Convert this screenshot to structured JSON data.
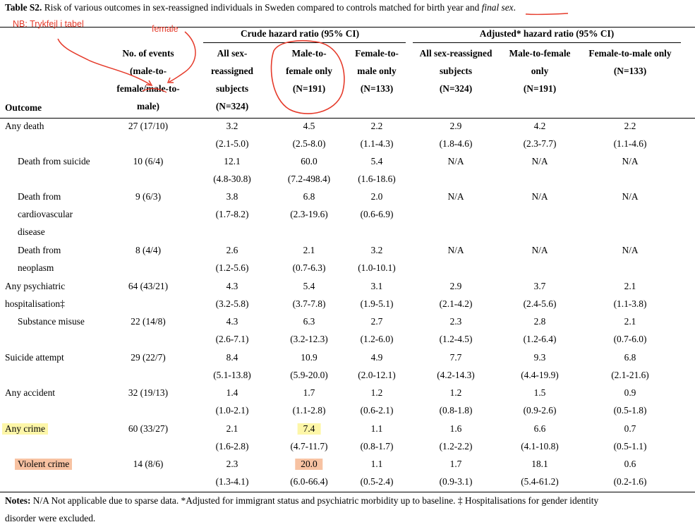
{
  "caption": {
    "label": "Table S2.",
    "text": " Risk of various outcomes in sex-reassigned individuals in Sweden compared to controls matched for birth year and ",
    "italic": "final sex",
    "end": "."
  },
  "annotations": {
    "nb_note": "NB: Trykfejl i tabel",
    "female_note": "female",
    "color": "#e53a2a"
  },
  "groups": {
    "crude": "Crude hazard ratio (95% CI)",
    "adjusted": "Adjusted* hazard ratio (95% CI)"
  },
  "headers": {
    "outcome": "Outcome",
    "events": [
      "No. of events",
      "(male-to-",
      "female/male-to-",
      "male)"
    ],
    "crude_all": [
      "All sex-",
      "reassigned",
      "subjects",
      "(N=324)"
    ],
    "crude_mtf": [
      "Male-to-",
      "female only",
      "(N=191)"
    ],
    "crude_ftm": [
      "Female-to-",
      "male only",
      "(N=133)"
    ],
    "adj_all": [
      "All sex-reassigned",
      "subjects",
      "(N=324)"
    ],
    "adj_mtf": [
      "Male-to-female",
      "only",
      "(N=191)"
    ],
    "adj_ftm": [
      "Female-to-male only",
      "(N=133)"
    ]
  },
  "rows": [
    {
      "outcome": [
        "Any death"
      ],
      "events": "27 (17/10)",
      "v": [
        "3.2",
        "4.5",
        "2.2",
        "2.9",
        "4.2",
        "2.2"
      ],
      "ci": [
        "(2.1-5.0)",
        "(2.5-8.0)",
        "(1.1-4.3)",
        "(1.8-4.6)",
        "(2.3-7.7)",
        "(1.1-4.6)"
      ]
    },
    {
      "outcome": [
        "Death from suicide"
      ],
      "events": "10 (6/4)",
      "v": [
        "12.1",
        "60.0",
        "5.4",
        "N/A",
        "N/A",
        "N/A"
      ],
      "ci": [
        "(4.8-30.8)",
        "(7.2-498.4)",
        "(1.6-18.6)",
        "",
        "",
        ""
      ]
    },
    {
      "outcome": [
        "Death from",
        "cardiovascular",
        "disease"
      ],
      "events": "9 (6/3)",
      "v": [
        "3.8",
        "6.8",
        "2.0",
        "N/A",
        "N/A",
        "N/A"
      ],
      "ci": [
        "(1.7-8.2)",
        "(2.3-19.6)",
        "(0.6-6.9)",
        "",
        "",
        ""
      ]
    },
    {
      "outcome": [
        "Death from",
        "neoplasm"
      ],
      "events": "8 (4/4)",
      "v": [
        "2.6",
        "2.1",
        "3.2",
        "N/A",
        "N/A",
        "N/A"
      ],
      "ci": [
        "(1.2-5.6)",
        "(0.7-6.3)",
        "(1.0-10.1)",
        "",
        "",
        ""
      ]
    },
    {
      "outcome": [
        "Any psychiatric",
        "hospitalisation‡"
      ],
      "events": "64 (43/21)",
      "v": [
        "4.3",
        "5.4",
        "3.1",
        "2.9",
        "3.7",
        "2.1"
      ],
      "ci": [
        "(3.2-5.8)",
        "(3.7-7.8)",
        "(1.9-5.1)",
        "(2.1-4.2)",
        "(2.4-5.6)",
        "(1.1-3.8)"
      ]
    },
    {
      "outcome": [
        "Substance misuse"
      ],
      "events": "22 (14/8)",
      "v": [
        "4.3",
        "6.3",
        "2.7",
        "2.3",
        "2.8",
        "2.1"
      ],
      "ci": [
        "(2.6-7.1)",
        "(3.2-12.3)",
        "(1.2-6.0)",
        "(1.2-4.5)",
        "(1.2-6.4)",
        "(0.7-6.0)"
      ]
    },
    {
      "outcome": [
        "Suicide attempt"
      ],
      "events": "29 (22/7)",
      "v": [
        "8.4",
        "10.9",
        "4.9",
        "7.7",
        "9.3",
        "6.8"
      ],
      "ci": [
        "(5.1-13.8)",
        "(5.9-20.0)",
        "(2.0-12.1)",
        "(4.2-14.3)",
        "(4.4-19.9)",
        "(2.1-21.6)"
      ]
    },
    {
      "outcome": [
        "Any accident"
      ],
      "events": "32 (19/13)",
      "v": [
        "1.4",
        "1.7",
        "1.2",
        "1.2",
        "1.5",
        "0.9"
      ],
      "ci": [
        "(1.0-2.1)",
        "(1.1-2.8)",
        "(0.6-2.1)",
        "(0.8-1.8)",
        "(0.9-2.6)",
        "(0.5-1.8)"
      ]
    },
    {
      "outcome": [
        "Any crime"
      ],
      "events": "60 (33/27)",
      "v": [
        "2.1",
        "7.4",
        "1.1",
        "1.6",
        "6.6",
        "0.7"
      ],
      "ci": [
        "(1.6-2.8)",
        "(4.7-11.7)",
        "(0.8-1.7)",
        "(1.2-2.2)",
        "(4.1-10.8)",
        "(0.5-1.1)"
      ]
    },
    {
      "outcome": [
        "Violent crime"
      ],
      "events": "14 (8/6)",
      "v": [
        "2.3",
        "20.0",
        "1.1",
        "1.7",
        "18.1",
        "0.6"
      ],
      "ci": [
        "(1.3-4.1)",
        "(6.0-66.4)",
        "(0.5-2.4)",
        "(0.9-3.1)",
        "(5.4-61.2)",
        "(0.2-1.6)"
      ]
    }
  ],
  "notes": {
    "label": "Notes:",
    "line1": " N/A Not applicable due to sparse data. *Adjusted for immigrant status and psychiatric morbidity up to baseline. ‡ Hospitalisations for gender identity",
    "line2": "disorder were excluded."
  }
}
